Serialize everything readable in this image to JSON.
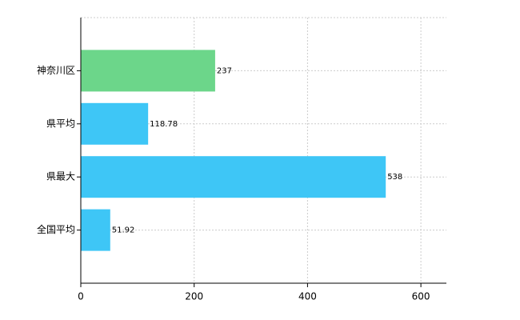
{
  "chart_data": {
    "type": "bar",
    "orientation": "horizontal",
    "categories": [
      "神奈川区",
      "県平均",
      "県最大",
      "全国平均"
    ],
    "values": [
      237,
      118.78,
      538,
      51.92
    ],
    "colors": [
      "#6cd68a",
      "#3ec6f6",
      "#3ec6f6",
      "#3ec6f6"
    ],
    "xlim": [
      0,
      645
    ],
    "xticks": [
      0,
      200,
      400,
      600
    ],
    "grid": true
  }
}
